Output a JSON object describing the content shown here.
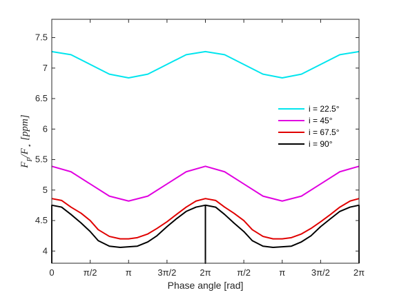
{
  "chart_data": {
    "type": "line",
    "xlabel": "Phase angle [rad]",
    "ylabel_main": "F",
    "ylabel_sub1": "P",
    "ylabel_slash": "/F",
    "ylabel_sub2": "⋆",
    "ylabel_unit": "[ppm]",
    "xlim": [
      0,
      12.566
    ],
    "ylim": [
      3.8,
      7.8
    ],
    "x_ticks": [
      {
        "value": 0,
        "label": "0"
      },
      {
        "value": 1.5708,
        "label": "π/2"
      },
      {
        "value": 3.1416,
        "label": "π"
      },
      {
        "value": 4.7124,
        "label": "3π/2"
      },
      {
        "value": 6.2832,
        "label": "2π"
      },
      {
        "value": 7.854,
        "label": "π/2"
      },
      {
        "value": 9.4248,
        "label": "π"
      },
      {
        "value": 10.9956,
        "label": "3π/2"
      },
      {
        "value": 12.566,
        "label": "2π"
      }
    ],
    "y_ticks": [
      {
        "value": 4,
        "label": "4"
      },
      {
        "value": 4.5,
        "label": "4.5"
      },
      {
        "value": 5,
        "label": "5"
      },
      {
        "value": 5.5,
        "label": "5.5"
      },
      {
        "value": 6,
        "label": "6"
      },
      {
        "value": 6.5,
        "label": "6.5"
      },
      {
        "value": 7,
        "label": "7"
      },
      {
        "value": 7.5,
        "label": "7.5"
      }
    ],
    "grid": false,
    "legend_position": "right",
    "series": [
      {
        "name": "i = 22.5°",
        "color": "#00e5ee",
        "x": [
          0,
          0.785,
          1.571,
          2.356,
          3.142,
          3.927,
          4.712,
          5.498,
          6.283,
          7.069,
          7.854,
          8.639,
          9.425,
          10.21,
          10.996,
          11.781,
          12.566
        ],
        "y": [
          7.27,
          7.22,
          7.06,
          6.9,
          6.84,
          6.9,
          7.06,
          7.22,
          7.27,
          7.22,
          7.06,
          6.9,
          6.84,
          6.9,
          7.06,
          7.22,
          7.27
        ]
      },
      {
        "name": "i = 45°",
        "color": "#e000e0",
        "x": [
          0,
          0.785,
          1.571,
          2.356,
          3.142,
          3.927,
          4.712,
          5.498,
          6.283,
          7.069,
          7.854,
          8.639,
          9.425,
          10.21,
          10.996,
          11.781,
          12.566
        ],
        "y": [
          5.39,
          5.3,
          5.1,
          4.9,
          4.82,
          4.9,
          5.1,
          5.3,
          5.39,
          5.3,
          5.1,
          4.9,
          4.82,
          4.9,
          5.1,
          5.3,
          5.39
        ]
      },
      {
        "name": "i = 67.5°",
        "color": "#e00000",
        "x": [
          0,
          0.4,
          0.785,
          1.2,
          1.571,
          1.9,
          2.356,
          2.8,
          3.142,
          3.5,
          3.927,
          4.3,
          4.712,
          5.1,
          5.498,
          5.9,
          6.283,
          6.7,
          7.069,
          7.45,
          7.854,
          8.2,
          8.639,
          9.05,
          9.425,
          9.8,
          10.21,
          10.6,
          10.996,
          11.4,
          11.781,
          12.2,
          12.566
        ],
        "y": [
          4.86,
          4.83,
          4.72,
          4.62,
          4.5,
          4.35,
          4.24,
          4.2,
          4.2,
          4.22,
          4.28,
          4.37,
          4.48,
          4.6,
          4.72,
          4.82,
          4.86,
          4.83,
          4.72,
          4.62,
          4.5,
          4.35,
          4.24,
          4.2,
          4.2,
          4.22,
          4.28,
          4.37,
          4.48,
          4.6,
          4.72,
          4.82,
          4.86
        ]
      },
      {
        "name": "i = 90°",
        "color": "#000000",
        "x": [
          0,
          0,
          0.02,
          0.4,
          0.785,
          1.2,
          1.571,
          1.9,
          2.356,
          2.8,
          3.142,
          3.5,
          3.927,
          4.3,
          4.712,
          5.1,
          5.498,
          5.9,
          6.263,
          6.283,
          6.283,
          6.283,
          6.303,
          6.7,
          7.069,
          7.45,
          7.854,
          8.2,
          8.639,
          9.05,
          9.425,
          9.8,
          10.21,
          10.6,
          10.996,
          11.4,
          11.781,
          12.2,
          12.546,
          12.566,
          12.566
        ],
        "y": [
          3.8,
          4.75,
          4.75,
          4.72,
          4.6,
          4.46,
          4.32,
          4.17,
          4.08,
          4.06,
          4.07,
          4.08,
          4.15,
          4.25,
          4.4,
          4.53,
          4.65,
          4.72,
          4.75,
          4.75,
          3.8,
          4.75,
          4.75,
          4.72,
          4.6,
          4.46,
          4.32,
          4.17,
          4.08,
          4.06,
          4.07,
          4.08,
          4.15,
          4.25,
          4.4,
          4.53,
          4.65,
          4.72,
          4.75,
          4.75,
          3.8
        ]
      }
    ]
  }
}
